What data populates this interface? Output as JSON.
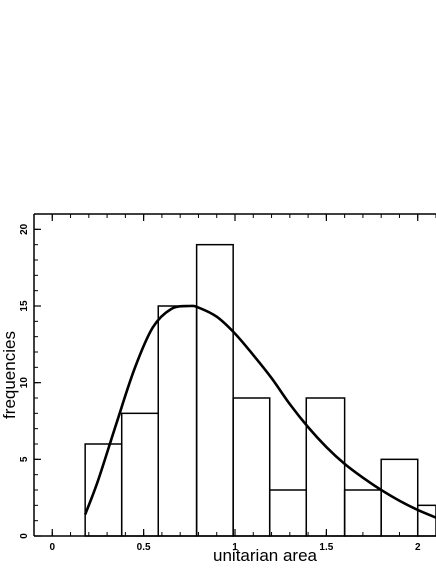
{
  "chart_data": {
    "type": "bar",
    "xlabel": "unitarian area",
    "ylabel": "frequencies",
    "xlim": [
      -0.1,
      2.1
    ],
    "ylim": [
      0,
      21
    ],
    "x_ticks": [
      {
        "value": 0,
        "label": "0"
      },
      {
        "value": 0.5,
        "label": "0.5"
      },
      {
        "value": 1,
        "label": "1"
      },
      {
        "value": 1.5,
        "label": "1.5"
      },
      {
        "value": 2,
        "label": "2"
      }
    ],
    "y_ticks": [
      {
        "value": 0,
        "label": "0"
      },
      {
        "value": 5,
        "label": "5"
      },
      {
        "value": 10,
        "label": "10"
      },
      {
        "value": 15,
        "label": "15"
      },
      {
        "value": 20,
        "label": "20"
      }
    ],
    "bins": [
      {
        "start": 0.18,
        "end": 0.38,
        "value": 6
      },
      {
        "start": 0.38,
        "end": 0.58,
        "value": 8
      },
      {
        "start": 0.58,
        "end": 0.79,
        "value": 15
      },
      {
        "start": 0.79,
        "end": 0.99,
        "value": 19
      },
      {
        "start": 0.99,
        "end": 1.19,
        "value": 9
      },
      {
        "start": 1.19,
        "end": 1.39,
        "value": 3
      },
      {
        "start": 1.39,
        "end": 1.6,
        "value": 9
      },
      {
        "start": 1.6,
        "end": 1.8,
        "value": 3
      },
      {
        "start": 1.8,
        "end": 2.0,
        "value": 5
      },
      {
        "start": 2.0,
        "end": 2.1,
        "value": 2
      }
    ],
    "fit_curve": {
      "x": [
        0.18,
        0.25,
        0.35,
        0.45,
        0.55,
        0.65,
        0.75,
        0.8,
        0.9,
        1.0,
        1.1,
        1.2,
        1.3,
        1.4,
        1.5,
        1.6,
        1.7,
        1.8,
        1.9,
        2.0,
        2.1
      ],
      "y": [
        1.4,
        3.6,
        7.3,
        10.9,
        13.6,
        14.8,
        15.0,
        14.9,
        14.3,
        13.2,
        11.8,
        10.3,
        8.6,
        7.1,
        5.8,
        4.7,
        3.8,
        3.0,
        2.3,
        1.7,
        1.2
      ]
    }
  }
}
